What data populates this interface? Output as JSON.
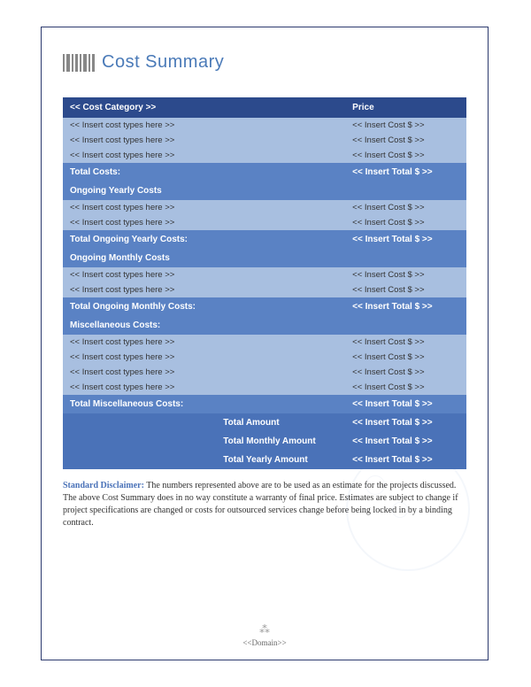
{
  "title": "Cost Summary",
  "table": {
    "header": {
      "category": "<< Cost Category >>",
      "price": "Price"
    },
    "initial_rows": [
      {
        "type": "<< Insert cost types here >>",
        "cost": "<< Insert Cost $ >>"
      },
      {
        "type": "<< Insert cost types here >>",
        "cost": "<< Insert Cost $ >>"
      },
      {
        "type": "<< Insert cost types here >>",
        "cost": "<< Insert Cost $ >>"
      }
    ],
    "total_costs": {
      "label": "Total Costs:",
      "value": "<< Insert Total $ >>"
    },
    "yearly": {
      "heading": "Ongoing Yearly Costs",
      "rows": [
        {
          "type": "<< Insert cost types here >>",
          "cost": "<< Insert Cost $ >>"
        },
        {
          "type": "<< Insert cost types here >>",
          "cost": "<< Insert Cost $ >>"
        }
      ],
      "total": {
        "label": "Total Ongoing Yearly Costs:",
        "value": "<< Insert Total $ >>"
      }
    },
    "monthly": {
      "heading": "Ongoing Monthly Costs",
      "rows": [
        {
          "type": "<< Insert cost types here >>",
          "cost": "<< Insert Cost $ >>"
        },
        {
          "type": "<< Insert cost types here >>",
          "cost": "<< Insert Cost $ >>"
        }
      ],
      "total": {
        "label": "Total Ongoing Monthly Costs:",
        "value": "<< Insert Total $ >>"
      }
    },
    "misc": {
      "heading": "Miscellaneous Costs:",
      "rows": [
        {
          "type": "<< Insert cost types here >>",
          "cost": "<< Insert Cost $ >>"
        },
        {
          "type": "<< Insert cost types here >>",
          "cost": "<< Insert Cost $ >>"
        },
        {
          "type": "<< Insert cost types here >>",
          "cost": "<< Insert Cost $ >>"
        },
        {
          "type": "<< Insert cost types here >>",
          "cost": "<< Insert Cost $ >>"
        }
      ],
      "total": {
        "label": "Total Miscellaneous Costs:",
        "value": "<< Insert Total $ >>"
      }
    },
    "grand_totals": [
      {
        "label": "Total Amount",
        "value": "<< Insert Total $ >>"
      },
      {
        "label": "Total Monthly Amount",
        "value": "<< Insert Total $ >>"
      },
      {
        "label": "Total Yearly Amount",
        "value": "<< Insert Total $ >>"
      }
    ]
  },
  "disclaimer": {
    "label": "Standard Disclaimer:",
    "text": "The numbers represented above are to be used as an estimate for the projects discussed. The above Cost Summary does in no way constitute a warranty of final price. Estimates are subject to change if project specifications are changed or costs for outsourced services change before being locked in by a binding contract."
  },
  "footer": "<<Domain>>",
  "colors": {
    "page_border": "#2c3a6e",
    "title_text": "#4a7ab8",
    "header_bg": "#2c4a8c",
    "section_bg": "#5a82c4",
    "total_bg": "#4a72b8",
    "light_bg": "#a8bfe0",
    "white": "#ffffff",
    "body_text": "#333333"
  }
}
